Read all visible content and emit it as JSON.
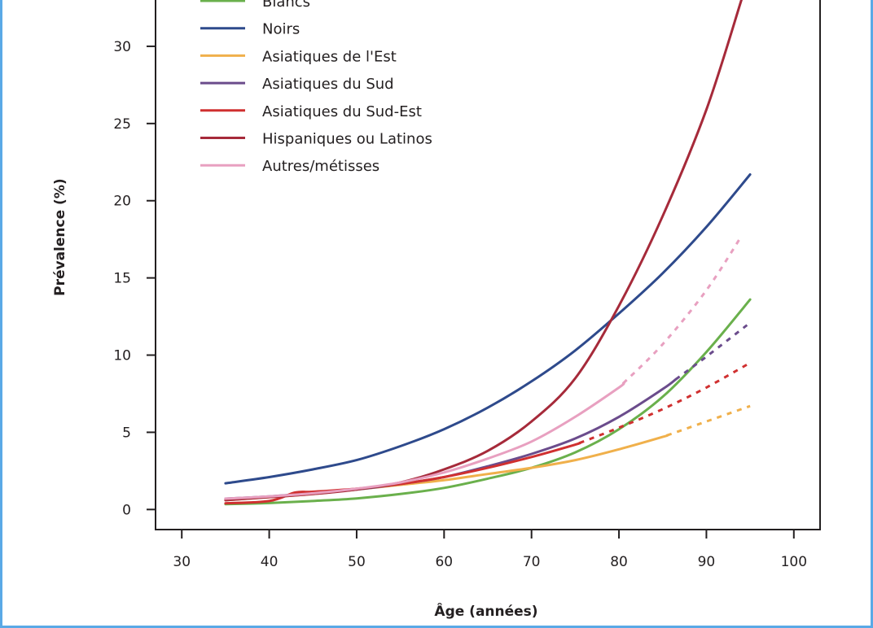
{
  "chart_data": {
    "type": "line",
    "xlabel": "Âge (années)",
    "ylabel": "Prévalence (%)",
    "xlim": [
      27,
      103
    ],
    "ylim": [
      -1.3,
      33
    ],
    "x_ticks": [
      30,
      40,
      50,
      60,
      70,
      80,
      90,
      100
    ],
    "y_ticks": [
      0,
      5,
      10,
      15,
      20,
      25,
      30
    ],
    "legend_position": "top-left",
    "line_style_note": "solid = observed range, dashed = extrapolated",
    "series": [
      {
        "name": "Blancs",
        "color": "#6ab04c",
        "x": [
          35,
          40,
          45,
          50,
          55,
          60,
          65,
          70,
          75,
          80,
          85,
          90,
          95
        ],
        "y": [
          0.35,
          0.42,
          0.55,
          0.72,
          1.0,
          1.4,
          2.0,
          2.7,
          3.7,
          5.2,
          7.3,
          10.2,
          13.6
        ],
        "dashed_from": null
      },
      {
        "name": "Noirs",
        "color": "#2e4a8c",
        "x": [
          35,
          40,
          45,
          50,
          55,
          60,
          65,
          70,
          75,
          80,
          85,
          90,
          95
        ],
        "y": [
          1.7,
          2.1,
          2.6,
          3.2,
          4.1,
          5.2,
          6.6,
          8.3,
          10.3,
          12.7,
          15.3,
          18.3,
          21.7
        ],
        "dashed_from": null
      },
      {
        "name": "Asiatiques de l'Est",
        "color": "#f0b04b",
        "x": [
          35,
          40,
          45,
          50,
          55,
          60,
          65,
          70,
          75,
          80,
          85,
          90,
          95
        ],
        "y": [
          0.6,
          0.8,
          1.0,
          1.3,
          1.6,
          1.9,
          2.3,
          2.7,
          3.2,
          3.9,
          4.7,
          5.7,
          6.7
        ],
        "dashed_from": 85.5
      },
      {
        "name": "Asiatiques du Sud",
        "color": "#6b4c8c",
        "x": [
          35,
          40,
          45,
          50,
          55,
          60,
          65,
          70,
          75,
          80,
          85,
          90,
          95
        ],
        "y": [
          0.7,
          0.85,
          1.05,
          1.3,
          1.65,
          2.1,
          2.8,
          3.6,
          4.6,
          6.0,
          7.8,
          9.9,
          12.1
        ],
        "dashed_from": 86.5
      },
      {
        "name": "Asiatiques du Sud-Est",
        "color": "#d03030",
        "x": [
          35,
          40,
          43,
          45,
          50,
          55,
          60,
          65,
          70,
          75,
          80,
          85,
          90,
          95
        ],
        "y": [
          0.4,
          0.55,
          1.1,
          1.15,
          1.35,
          1.65,
          2.1,
          2.7,
          3.4,
          4.2,
          5.3,
          6.5,
          7.9,
          9.5
        ],
        "dashed_from": 75.5
      },
      {
        "name": "Hispaniques ou Latinos",
        "color": "#a62a3a",
        "x": [
          35,
          40,
          45,
          50,
          55,
          60,
          65,
          70,
          75,
          80,
          85,
          90,
          94
        ],
        "y": [
          0.6,
          0.8,
          1.0,
          1.3,
          1.75,
          2.6,
          3.8,
          5.7,
          8.5,
          13.2,
          19.0,
          25.9,
          33.0
        ],
        "dashed_from": null
      },
      {
        "name": "Autres/métisses",
        "color": "#e8a0c0",
        "x": [
          35,
          40,
          45,
          50,
          55,
          60,
          65,
          70,
          75,
          80,
          85,
          90,
          94
        ],
        "y": [
          0.7,
          0.85,
          1.05,
          1.35,
          1.75,
          2.4,
          3.3,
          4.4,
          6.0,
          7.9,
          10.7,
          14.2,
          17.7
        ],
        "dashed_from": 80.5
      }
    ]
  }
}
